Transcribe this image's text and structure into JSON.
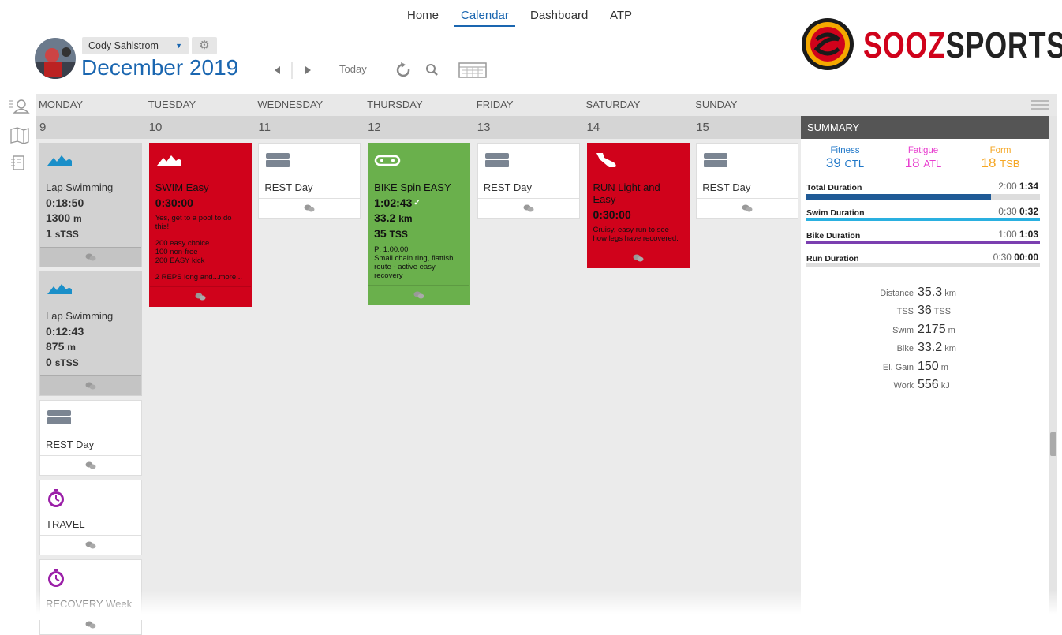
{
  "nav": {
    "items": [
      "Home",
      "Calendar",
      "Dashboard",
      "ATP"
    ]
  },
  "header": {
    "user": "Cody Sahlstrom",
    "month": "December",
    "year": "2019",
    "today": "Today"
  },
  "logo": {
    "part1": "SOOZ",
    "part2": "SPORTS"
  },
  "calendar": {
    "weekdays": [
      "MONDAY",
      "TUESDAY",
      "WEDNESDAY",
      "THURSDAY",
      "FRIDAY",
      "SATURDAY",
      "SUNDAY"
    ],
    "dates": [
      9,
      10,
      11,
      12,
      13,
      14,
      15
    ],
    "summary_title": "SUMMARY",
    "days": [
      [
        {
          "color": "#d2d2d2",
          "title": "Lap Swimming",
          "lines": [
            {
              "value": "0:18:50"
            },
            {
              "value": "1300",
              "unit": "m"
            },
            {
              "value": "1",
              "unit": "sTSS"
            }
          ],
          "notes": []
        },
        {
          "color": "#d2d2d2",
          "title": "Lap Swimming",
          "lines": [
            {
              "value": "0:12:43"
            },
            {
              "value": "875",
              "unit": "m"
            },
            {
              "value": "0",
              "unit": "sTSS"
            }
          ],
          "notes": []
        },
        {
          "color": "#ffffff",
          "title": "REST Day",
          "lines": [],
          "notes": []
        },
        {
          "color": "#ffffff",
          "title": "TRAVEL",
          "lines": [],
          "notes": []
        },
        {
          "color": "#ffffff",
          "title": "RECOVERY Week",
          "lines": [],
          "notes": []
        }
      ],
      [
        {
          "color": "#d0021b",
          "title": "SWIM Easy",
          "lines": [
            {
              "value": "0:30:00"
            }
          ],
          "notes": [
            "Yes, get to a pool to do this!",
            "200 easy choice\n100 non-free\n200 EASY kick",
            "2 REPS long and...more..."
          ]
        }
      ],
      [
        {
          "color": "#ffffff",
          "title": "REST Day",
          "lines": [],
          "notes": []
        }
      ],
      [
        {
          "color": "#6ab04c",
          "title": "BIKE Spin EASY",
          "lines": [
            {
              "value": "1:02:43"
            },
            {
              "value": "33.2",
              "unit": "km"
            },
            {
              "value": "35",
              "unit": "TSS"
            }
          ],
          "notes": [
            "P: 1:00:00\nSmall chain ring, flattish route - active easy recovery"
          ]
        }
      ],
      [
        {
          "color": "#ffffff",
          "title": "REST Day",
          "lines": [],
          "notes": []
        }
      ],
      [
        {
          "color": "#d0021b",
          "title": "RUN Light and Easy",
          "lines": [
            {
              "value": "0:30:00"
            }
          ],
          "notes": [
            "Cruisy, easy run to see how legs have recovered."
          ]
        }
      ],
      [
        {
          "color": "#ffffff",
          "title": "REST Day",
          "lines": [],
          "notes": []
        }
      ]
    ]
  },
  "summary": {
    "metrics": [
      {
        "label": "Fitness",
        "value": "39",
        "unit": "CTL",
        "color": "#1f77c8"
      },
      {
        "label": "Fatigue",
        "value": "18",
        "unit": "ATL",
        "color": "#e83ecf"
      },
      {
        "label": "Form",
        "value": "18",
        "unit": "TSB",
        "color": "#f5a623"
      }
    ],
    "durations": [
      {
        "label": "Total Duration",
        "planned": "2:00",
        "actual": "1:34"
      },
      {
        "label": "Swim Duration",
        "planned": "0:30",
        "actual": "0:32"
      },
      {
        "label": "Bike Duration",
        "planned": "1:00",
        "actual": "1:03"
      },
      {
        "label": "Run Duration",
        "planned": "0:30",
        "actual": "00:00"
      }
    ],
    "stats": [
      {
        "label": "Distance",
        "value": "35.3",
        "unit": "km"
      },
      {
        "label": "TSS",
        "value": "36",
        "unit": "TSS"
      },
      {
        "label": "Swim",
        "value": "2175",
        "unit": "m"
      },
      {
        "label": "Bike",
        "value": "33.2",
        "unit": "km"
      },
      {
        "label": "El. Gain",
        "value": "150",
        "unit": "m"
      },
      {
        "label": "Work",
        "value": "556",
        "unit": "kJ"
      }
    ]
  }
}
